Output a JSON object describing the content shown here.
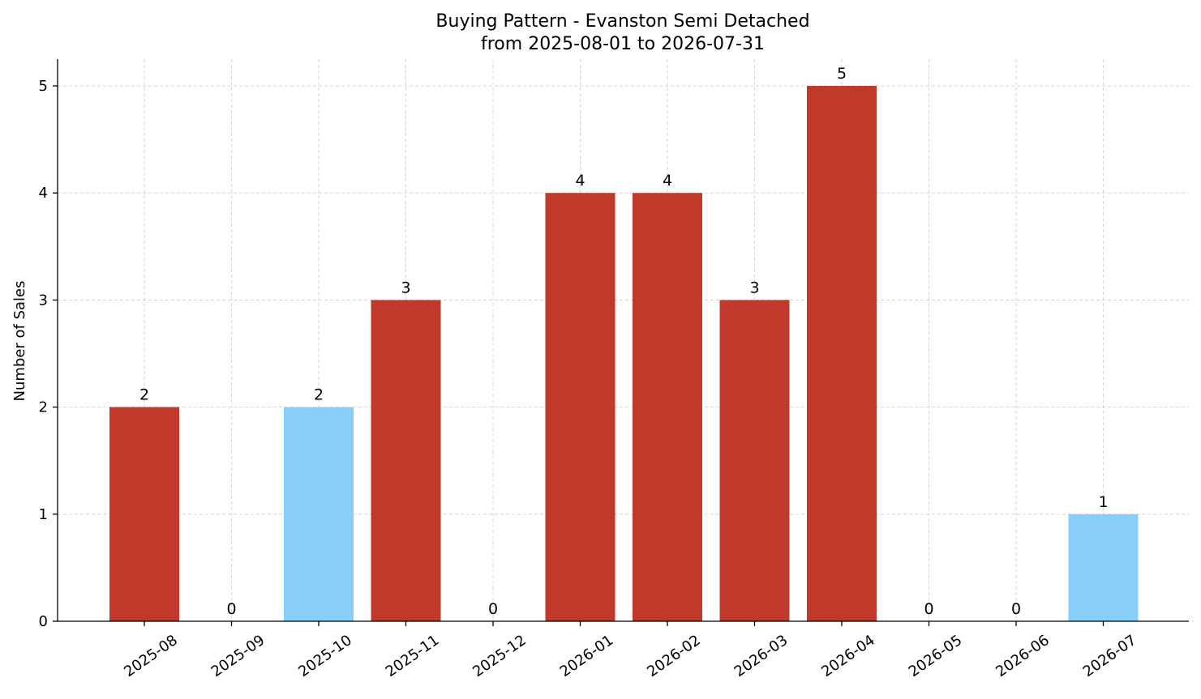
{
  "chart_data": {
    "type": "bar",
    "title": "Buying Pattern - Evanston Semi Detached",
    "subtitle": "from 2025-08-01 to 2026-07-31",
    "xlabel": "",
    "ylabel": "Number of Sales",
    "categories": [
      "2025-08",
      "2025-09",
      "2025-10",
      "2025-11",
      "2025-12",
      "2026-01",
      "2026-02",
      "2026-03",
      "2026-04",
      "2026-05",
      "2026-06",
      "2026-07"
    ],
    "values": [
      2,
      0,
      2,
      3,
      0,
      4,
      4,
      3,
      5,
      0,
      0,
      1
    ],
    "bar_colors": [
      "#c0392b",
      "#c0392b",
      "#87cefa",
      "#c0392b",
      "#c0392b",
      "#c0392b",
      "#c0392b",
      "#c0392b",
      "#c0392b",
      "#c0392b",
      "#c0392b",
      "#87cefa"
    ],
    "ylim": [
      0,
      5.25
    ],
    "yticks": [
      0,
      1,
      2,
      3,
      4,
      5
    ],
    "grid": true,
    "legend": "none"
  }
}
